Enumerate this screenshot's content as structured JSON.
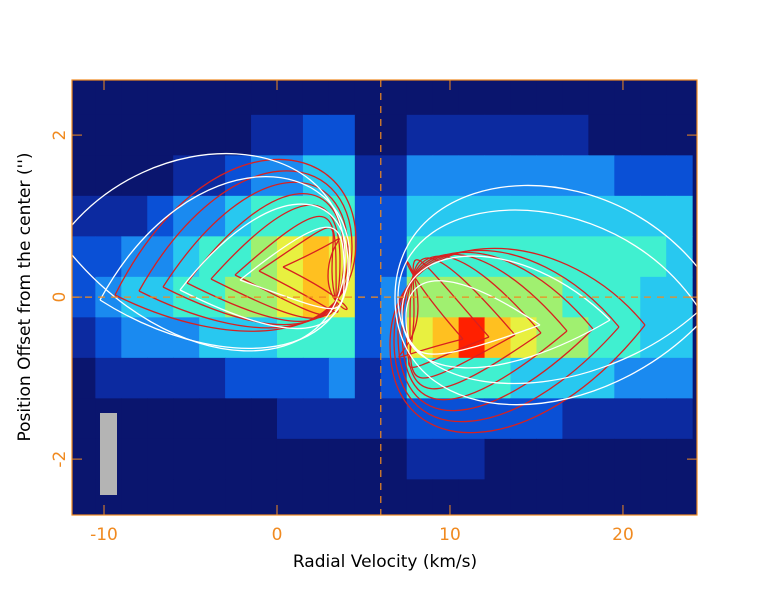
{
  "chart_data": {
    "type": "heatmap",
    "xlabel": "Radial Velocity (km/s)",
    "ylabel": "Position Offset from the center ('')",
    "xlim": [
      -11.85,
      24.28
    ],
    "ylim": [
      -2.69,
      2.68
    ],
    "xticks": [
      -10,
      0,
      10,
      20
    ],
    "yticks": [
      -2,
      0,
      2
    ],
    "x": [
      -11.25,
      -9.75,
      -8.25,
      -6.75,
      -5.25,
      -3.75,
      -2.25,
      -0.75,
      0.75,
      2.25,
      3.75,
      5.25,
      6.75,
      8.25,
      9.75,
      11.25,
      12.75,
      14.25,
      15.75,
      17.25,
      18.75,
      20.25,
      21.75,
      23.25
    ],
    "y": [
      2.5,
      2.0,
      1.5,
      1.0,
      0.5,
      0.0,
      -0.5,
      -1.0,
      -1.5,
      -2.0,
      -2.5
    ],
    "z": [
      [
        0,
        0,
        0,
        0,
        0,
        0,
        0,
        0,
        0,
        0,
        0,
        0,
        0,
        0,
        0,
        0,
        0,
        0,
        0,
        0,
        0,
        0,
        0,
        0
      ],
      [
        0,
        0,
        0,
        0,
        0,
        0,
        0,
        1,
        1,
        2,
        2,
        0,
        0,
        1,
        1,
        1,
        1,
        1,
        1,
        1,
        0,
        0,
        0,
        0
      ],
      [
        0,
        0,
        0,
        0,
        1,
        1,
        2,
        3,
        3,
        4,
        4,
        1,
        1,
        3,
        3,
        3,
        3,
        3,
        3,
        3,
        3,
        2,
        2,
        2
      ],
      [
        1,
        1,
        1,
        2,
        3,
        3,
        4,
        5,
        5,
        5,
        5,
        2,
        2,
        4,
        4,
        4,
        4,
        4,
        4,
        4,
        4,
        4,
        4,
        4
      ],
      [
        2,
        2,
        3,
        3,
        4,
        5,
        5,
        6,
        7,
        8,
        7,
        2,
        2,
        5,
        5,
        5,
        5,
        5,
        5,
        5,
        5,
        5,
        5,
        4
      ],
      [
        2,
        3,
        4,
        4,
        5,
        5,
        6,
        6,
        7,
        8,
        7,
        2,
        3,
        6,
        6,
        6,
        6,
        6,
        6,
        5,
        5,
        5,
        4,
        4
      ],
      [
        1,
        2,
        3,
        3,
        3,
        4,
        4,
        4,
        5,
        5,
        5,
        2,
        3,
        7,
        8,
        10,
        8,
        7,
        6,
        6,
        5,
        5,
        4,
        4
      ],
      [
        0,
        1,
        1,
        1,
        1,
        1,
        2,
        2,
        2,
        2,
        3,
        1,
        2,
        5,
        5,
        5,
        5,
        4,
        4,
        4,
        4,
        3,
        3,
        3
      ],
      [
        0,
        0,
        0,
        0,
        0,
        0,
        0,
        0,
        1,
        1,
        1,
        1,
        1,
        2,
        2,
        2,
        2,
        2,
        2,
        1,
        1,
        1,
        1,
        1
      ],
      [
        0,
        0,
        0,
        0,
        0,
        0,
        0,
        0,
        0,
        0,
        0,
        0,
        0,
        1,
        1,
        1,
        0,
        0,
        0,
        0,
        0,
        0,
        0,
        0
      ],
      [
        0,
        0,
        0,
        0,
        0,
        0,
        0,
        0,
        0,
        0,
        0,
        0,
        0,
        0,
        0,
        0,
        0,
        0,
        0,
        0,
        0,
        0,
        0,
        0
      ]
    ],
    "colors": [
      "#0a156e",
      "#0c2aa0",
      "#0a50d6",
      "#1a8af0",
      "#28c8f0",
      "#40f0d0",
      "#a0f070",
      "#e8f040",
      "#ffc020",
      "#ff7010",
      "#ff2000"
    ],
    "ref_x": 6,
    "ref_y": 0,
    "axis_color": "#f08a20"
  }
}
